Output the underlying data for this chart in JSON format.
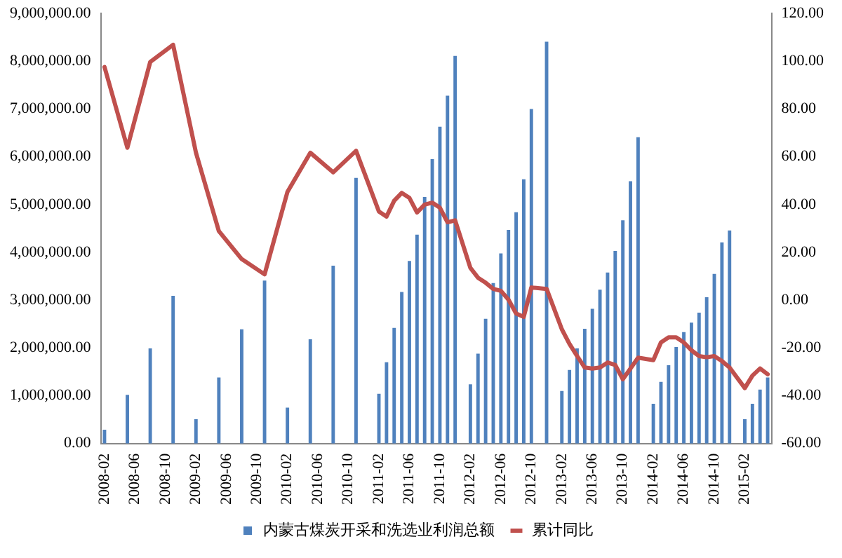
{
  "chart_data": {
    "type": "bar",
    "categories": [
      "2008-02",
      null,
      null,
      null,
      "2008-06",
      null,
      null,
      null,
      "2008-10",
      null,
      null,
      null,
      "2009-02",
      null,
      null,
      null,
      "2009-06",
      null,
      null,
      null,
      "2009-10",
      null,
      null,
      null,
      "2010-02",
      null,
      null,
      null,
      "2010-06",
      null,
      null,
      null,
      "2010-10",
      null,
      null,
      null,
      "2011-02",
      null,
      null,
      null,
      "2011-06",
      null,
      null,
      null,
      "2011-10",
      null,
      null,
      null,
      "2012-02",
      null,
      null,
      null,
      "2012-06",
      null,
      null,
      null,
      "2012-10",
      null,
      null,
      null,
      "2013-02",
      null,
      null,
      null,
      "2013-06",
      null,
      null,
      null,
      "2013-10",
      null,
      null,
      null,
      "2014-02",
      null,
      null,
      null,
      "2014-06",
      null,
      null,
      null,
      "2014-10",
      null,
      null,
      null,
      "2015-02",
      null,
      null,
      null
    ],
    "series": [
      {
        "name": "内蒙古煤炭开采和洗选业利润总额",
        "type": "bar",
        "color": "#4f81bd",
        "values": [
          290000,
          null,
          null,
          1020000,
          null,
          null,
          1990000,
          null,
          null,
          3090000,
          null,
          null,
          510000,
          null,
          null,
          1380000,
          null,
          null,
          2390000,
          null,
          null,
          3410000,
          null,
          null,
          750000,
          null,
          null,
          2180000,
          null,
          null,
          3720000,
          null,
          null,
          5560000,
          null,
          null,
          1040000,
          1700000,
          2420000,
          3170000,
          3820000,
          4370000,
          5160000,
          5950000,
          6630000,
          7280000,
          8110000,
          null,
          1240000,
          1880000,
          2610000,
          3360000,
          3980000,
          4470000,
          4840000,
          5530000,
          7000000,
          null,
          8410000,
          null,
          1100000,
          1540000,
          1990000,
          2400000,
          2820000,
          3220000,
          3580000,
          4030000,
          4670000,
          5490000,
          6410000,
          null,
          830000,
          1290000,
          1640000,
          2020000,
          2330000,
          2530000,
          2740000,
          3060000,
          3550000,
          4210000,
          4460000,
          null,
          510000,
          830000,
          1130000,
          1380000
        ]
      },
      {
        "name": "累计同比",
        "type": "line",
        "axis": "y2",
        "color": "#c0504d",
        "values": [
          97.6,
          null,
          null,
          63.8,
          null,
          null,
          99.7,
          null,
          null,
          106.9,
          null,
          null,
          61.7,
          null,
          null,
          28.9,
          null,
          null,
          17.2,
          null,
          null,
          10.8,
          null,
          null,
          45.3,
          null,
          null,
          61.7,
          null,
          null,
          53.5,
          null,
          null,
          62.5,
          null,
          null,
          37.1,
          35.0,
          41.6,
          44.9,
          42.8,
          36.7,
          40.0,
          40.8,
          38.7,
          32.6,
          33.4,
          null,
          13.5,
          9.4,
          7.3,
          4.7,
          3.9,
          0.2,
          -5.6,
          -7.0,
          5.3,
          null,
          4.7,
          null,
          -12.2,
          -18.3,
          -23.4,
          -28.2,
          -28.6,
          -28.2,
          -26.1,
          -27.1,
          -33.1,
          -28.6,
          -24.1,
          null,
          -25.1,
          -17.7,
          -15.6,
          -15.6,
          -17.7,
          -21.0,
          -23.4,
          -23.9,
          -23.4,
          -25.5,
          -28.2,
          null,
          -36.8,
          -31.6,
          -28.6,
          -31.0
        ]
      }
    ],
    "ylim": [
      0,
      9000000
    ],
    "yticks": [
      {
        "value": 0,
        "label": "0.00"
      },
      {
        "value": 1000000,
        "label": "1,000,000.00"
      },
      {
        "value": 2000000,
        "label": "2,000,000.00"
      },
      {
        "value": 3000000,
        "label": "3,000,000.00"
      },
      {
        "value": 4000000,
        "label": "4,000,000.00"
      },
      {
        "value": 5000000,
        "label": "5,000,000.00"
      },
      {
        "value": 6000000,
        "label": "6,000,000.00"
      },
      {
        "value": 7000000,
        "label": "7,000,000.00"
      },
      {
        "value": 8000000,
        "label": "8,000,000.00"
      },
      {
        "value": 9000000,
        "label": "9,000,000.00"
      }
    ],
    "y2lim": [
      -60,
      120
    ],
    "y2ticks": [
      {
        "value": -60,
        "label": "-60.00"
      },
      {
        "value": -40,
        "label": "-40.00"
      },
      {
        "value": -20,
        "label": "-20.00"
      },
      {
        "value": 0,
        "label": "0.00"
      },
      {
        "value": 20,
        "label": "20.00"
      },
      {
        "value": 40,
        "label": "40.00"
      },
      {
        "value": 60,
        "label": "60.00"
      },
      {
        "value": 80,
        "label": "80.00"
      },
      {
        "value": 100,
        "label": "100.00"
      },
      {
        "value": 120,
        "label": "120.00"
      }
    ],
    "grid": false,
    "legend": "bottom",
    "marker": "none",
    "line_style": "solid"
  }
}
